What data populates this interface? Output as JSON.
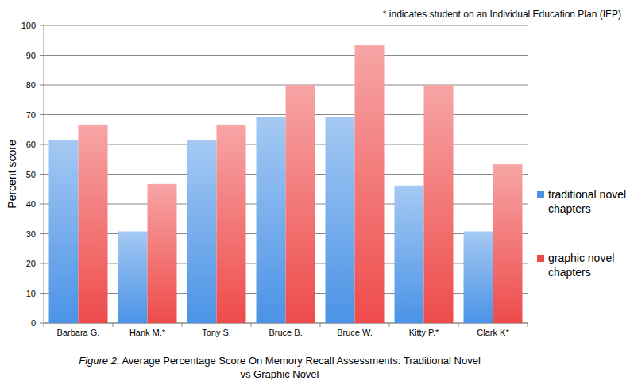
{
  "chart_data": {
    "type": "bar",
    "title": "Figure 2. Average Percentage Score On Memory Recall Assessments: Traditional Novel vs Graphic Novel",
    "y_label": "Percent score",
    "annotations": [
      "* indicates student on an Individual Education Plan (IEP)"
    ],
    "categories": [
      "Barbara G.",
      "Hank M.*",
      "Tony S.",
      "Bruce B.",
      "Bruce W.",
      "Kitty P.*",
      "Clark K*"
    ],
    "series": [
      {
        "name": "traditional novel chapters",
        "color": "#4b93e6",
        "values": [
          61.5,
          30.8,
          61.5,
          69.2,
          69.2,
          46.2,
          30.8
        ]
      },
      {
        "name": "graphic novel chapters",
        "color": "#ee4b4b",
        "values": [
          66.7,
          46.7,
          66.7,
          80,
          93.3,
          80,
          53.3
        ]
      }
    ],
    "ylim": [
      0,
      100
    ],
    "yticks": [
      0,
      10,
      20,
      30,
      40,
      50,
      60,
      70,
      80,
      90,
      100
    ],
    "grid": true,
    "legend": "right"
  }
}
